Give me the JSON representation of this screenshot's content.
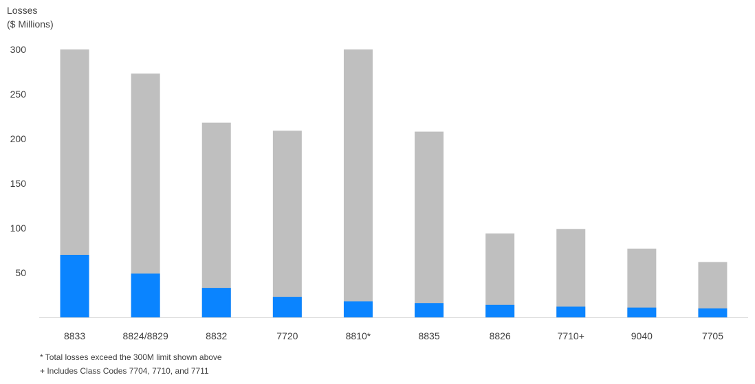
{
  "chart_data": {
    "type": "bar",
    "stacked": false,
    "overlay": true,
    "ylabel": [
      "Losses",
      "($ Millions)"
    ],
    "ylim": [
      0,
      300
    ],
    "yticks": [
      50,
      100,
      150,
      200,
      250,
      300
    ],
    "categories": [
      "8833",
      "8824/8829",
      "8832",
      "7720",
      "8810*",
      "8835",
      "8826",
      "7710+",
      "9040",
      "7705"
    ],
    "series": [
      {
        "values": [
          300,
          273,
          218,
          209,
          300,
          208,
          94,
          99,
          77,
          62
        ],
        "color": "#bfbfbf"
      },
      {
        "values": [
          70,
          49,
          33,
          23,
          18,
          16,
          14,
          12,
          11,
          10
        ],
        "color": "#0a84ff"
      }
    ],
    "grid": false,
    "legend": "none"
  },
  "notes": [
    "* Total losses exceed the 300M limit shown above",
    "+ Includes Class Codes 7704, 7710, and 7711"
  ]
}
